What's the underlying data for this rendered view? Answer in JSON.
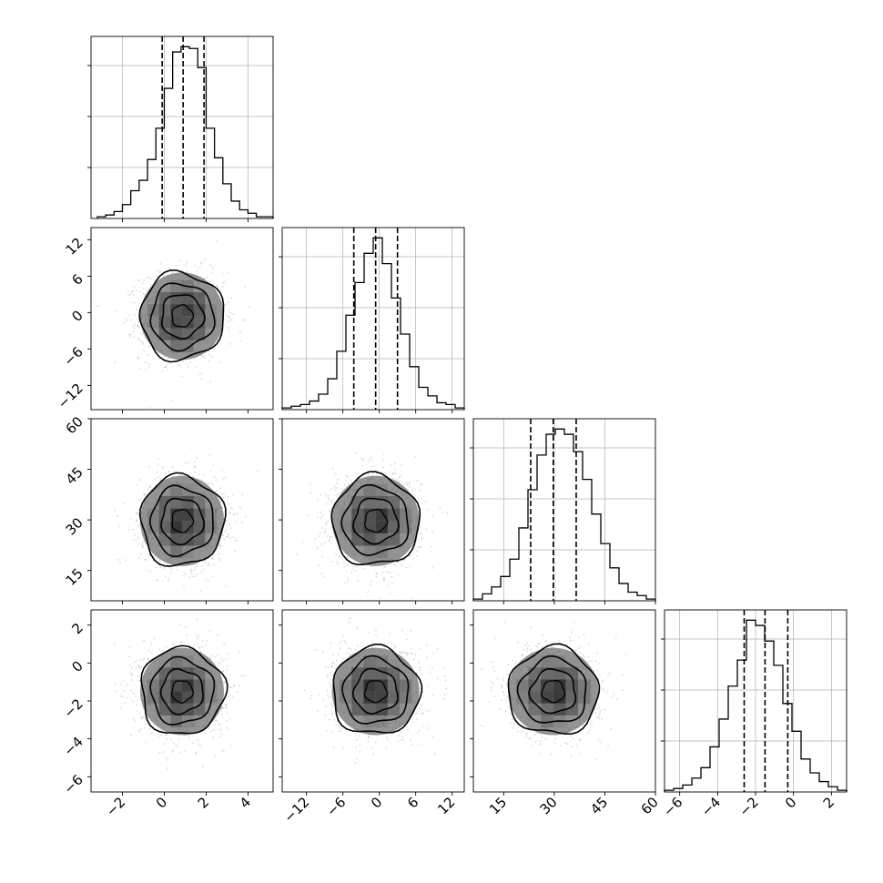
{
  "chart_data": {
    "type": "corner",
    "grid": true,
    "n_params": 4,
    "params": [
      {
        "index": 0,
        "range": [
          -3.5,
          5.2
        ],
        "ticks": [
          -2,
          0,
          2,
          4
        ],
        "tick_labels": [
          "−2",
          "0",
          "2",
          "4"
        ],
        "quantiles": [
          -0.1,
          0.9,
          1.9
        ],
        "hist_bins_start": -3.2,
        "hist_bin_width": 0.4,
        "hist_counts": [
          1,
          2,
          4,
          8,
          16,
          22,
          34,
          52,
          75,
          96,
          99,
          98,
          87,
          52,
          35,
          20,
          10,
          5,
          3,
          1,
          1
        ]
      },
      {
        "index": 1,
        "range": [
          -16,
          14
        ],
        "ticks": [
          -12,
          -6,
          0,
          6,
          12
        ],
        "tick_labels": [
          "−12",
          "−6",
          "0",
          "6",
          "12"
        ],
        "quantiles": [
          -4.2,
          -0.6,
          3.0
        ],
        "hist_bins_start": -16,
        "hist_bin_width": 1.5,
        "hist_counts": [
          1,
          2,
          3,
          5,
          9,
          18,
          34,
          55,
          74,
          91,
          100,
          85,
          65,
          44,
          25,
          13,
          8,
          4,
          3,
          1
        ]
      },
      {
        "index": 2,
        "range": [
          6,
          60
        ],
        "ticks": [
          15,
          30,
          45,
          60
        ],
        "tick_labels": [
          "15",
          "30",
          "45",
          "60"
        ],
        "quantiles": [
          23,
          29.7,
          36.5
        ],
        "hist_bins_start": 6,
        "hist_bin_width": 2.7,
        "hist_counts": [
          1,
          4,
          8,
          14,
          24,
          42,
          64,
          84,
          96,
          99,
          96,
          86,
          70,
          50,
          33,
          19,
          10,
          5,
          3,
          1
        ]
      },
      {
        "index": 3,
        "range": [
          -6.8,
          2.8
        ],
        "ticks": [
          -6,
          -4,
          -2,
          0,
          2
        ],
        "tick_labels": [
          "−6",
          "−4",
          "−2",
          "0",
          "2"
        ],
        "quantiles": [
          -2.6,
          -1.5,
          -0.3
        ],
        "hist_bins_start": -6.8,
        "hist_bin_width": 0.48,
        "hist_counts": [
          1,
          2,
          4,
          8,
          14,
          26,
          42,
          61,
          76,
          99,
          96,
          87,
          73,
          51,
          35,
          19,
          11,
          6,
          3,
          1
        ]
      }
    ],
    "pairs": [
      {
        "row": 1,
        "col": 0,
        "center": [
          0.85,
          -0.6
        ],
        "sigma": [
          1.0,
          3.6
        ]
      },
      {
        "row": 2,
        "col": 0,
        "center": [
          0.85,
          29.7
        ],
        "sigma": [
          1.0,
          6.7
        ]
      },
      {
        "row": 2,
        "col": 1,
        "center": [
          -0.6,
          29.7
        ],
        "sigma": [
          3.6,
          6.7
        ]
      },
      {
        "row": 3,
        "col": 0,
        "center": [
          0.85,
          -1.5
        ],
        "sigma": [
          1.0,
          1.15
        ]
      },
      {
        "row": 3,
        "col": 1,
        "center": [
          -0.6,
          -1.5
        ],
        "sigma": [
          3.6,
          1.15
        ]
      },
      {
        "row": 3,
        "col": 2,
        "center": [
          29.7,
          -1.5
        ],
        "sigma": [
          6.7,
          1.15
        ]
      }
    ],
    "contour_levels_sigma": [
      0.5,
      1.0,
      1.5,
      2.0
    ],
    "style": {
      "line_color": "#000000",
      "grid_color": "#b0b0b0",
      "point_color": "#000000",
      "bin_color_dark": "#000000"
    }
  }
}
